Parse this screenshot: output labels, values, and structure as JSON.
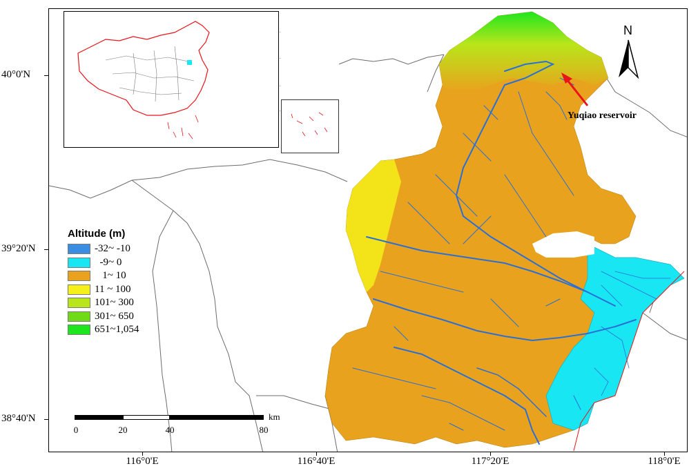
{
  "map": {
    "lat_labels": [
      "40°0'N",
      "39°20'N",
      "38°40'N"
    ],
    "lon_labels": [
      "116°0'E",
      "116°40'E",
      "117°20'E",
      "118°0'E"
    ],
    "north_label": "N",
    "annotation": "Yuqiao reservoir",
    "annotation_color": "#e8141a",
    "river_color": "#2a6fd6",
    "boundary_color": "#6b6b6b"
  },
  "legend": {
    "title": "Altitude (m)",
    "classes": [
      {
        "label": "-32~ -10",
        "color": "#3a8de0"
      },
      {
        "label": "  -9~ 0",
        "color": "#18e6f2"
      },
      {
        "label": "   1~ 10",
        "color": "#e9a21d"
      },
      {
        "label": "11 ~ 100",
        "color": "#f5f01a"
      },
      {
        "label": "101~ 300",
        "color": "#b8e61a"
      },
      {
        "label": "301~ 650",
        "color": "#6fda18"
      },
      {
        "label": "651~1,054",
        "color": "#1ee61e"
      }
    ]
  },
  "scalebar": {
    "labels": [
      "0",
      "20",
      "40",
      "80"
    ],
    "unit": "km"
  },
  "inset": {
    "boundary_color": "#e8141a",
    "highlight_color": "#18e6f2"
  }
}
